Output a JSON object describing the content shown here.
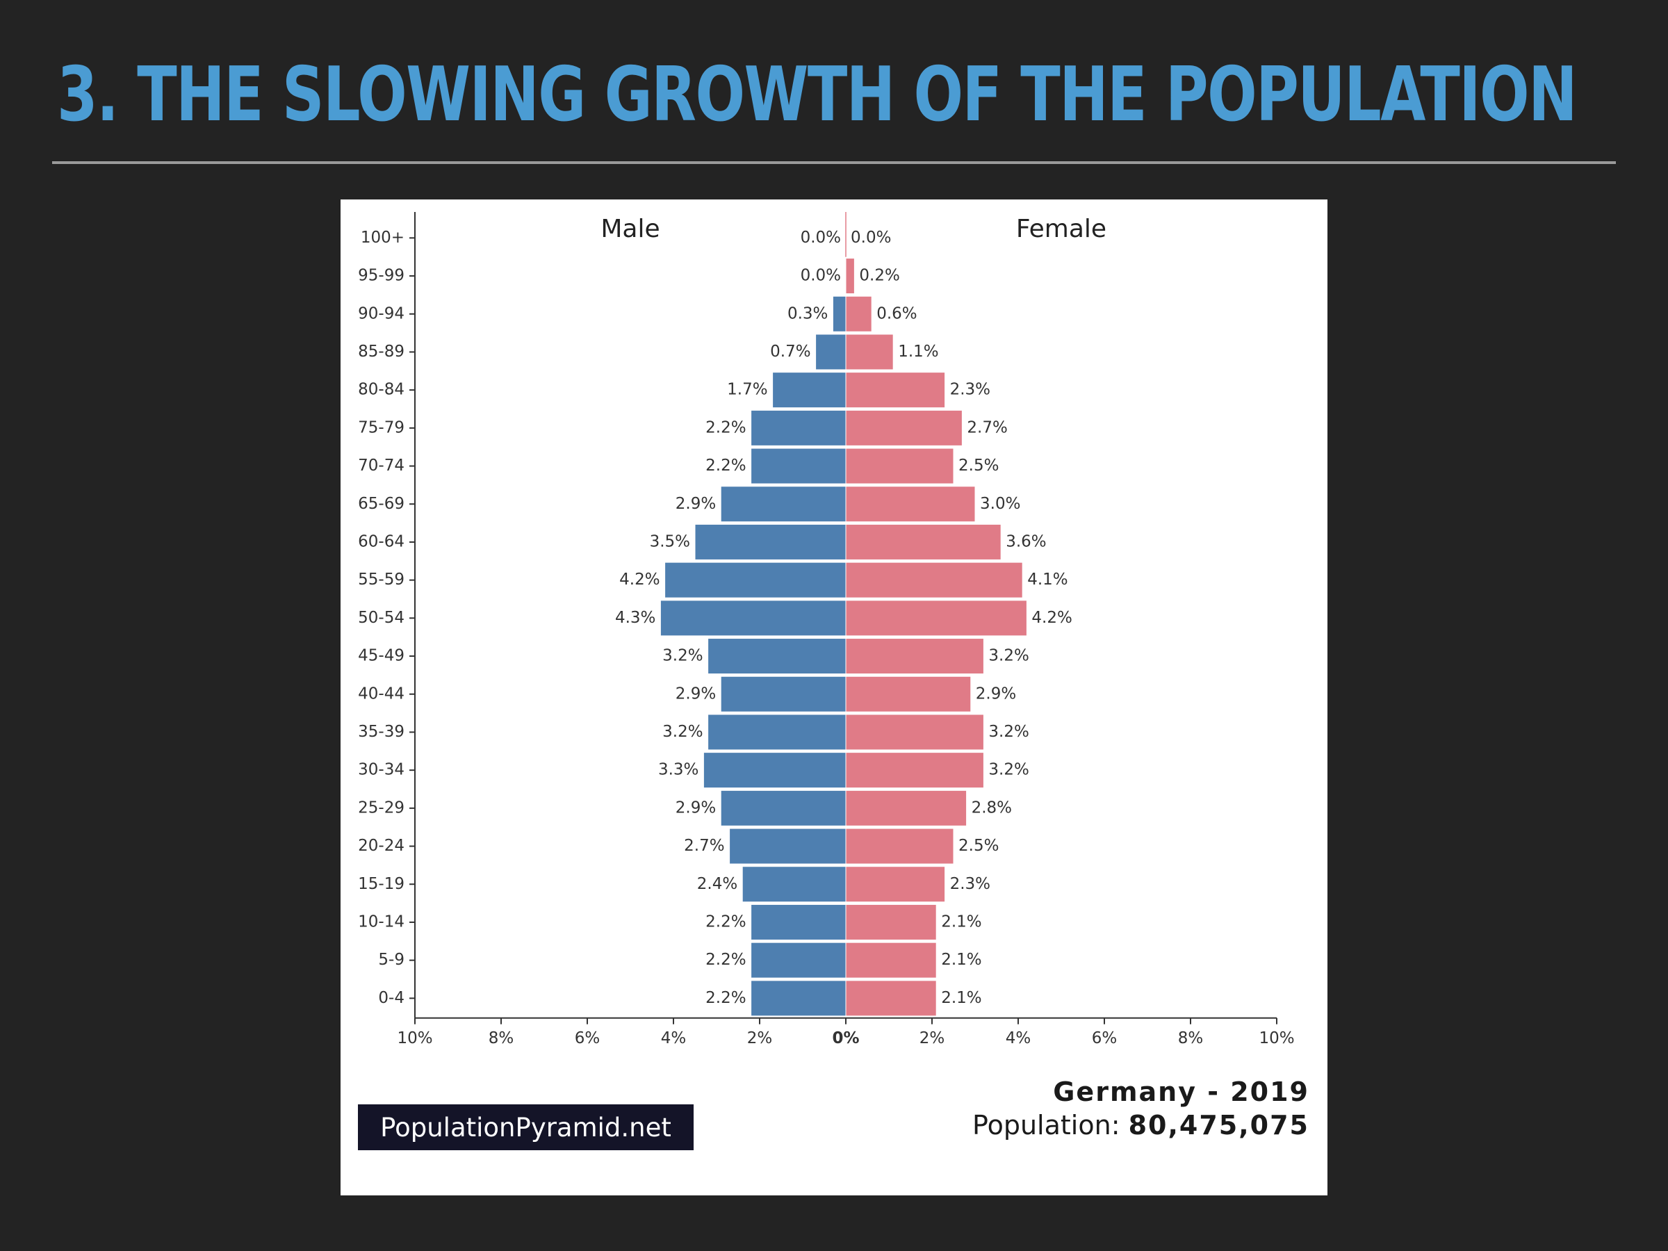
{
  "slide": {
    "title": "3. THE SLOWING GROWTH OF THE POPULATION"
  },
  "chart_meta": {
    "brand": "PopulationPyramid.net",
    "country_year": "Germany - 2019",
    "population_label": "Population:",
    "population_value": "80,475,075"
  },
  "chart_data": {
    "type": "bar",
    "orientation": "horizontal-pyramid",
    "categories": [
      "100+",
      "95-99",
      "90-94",
      "85-89",
      "80-84",
      "75-79",
      "70-74",
      "65-69",
      "60-64",
      "55-59",
      "50-54",
      "45-49",
      "40-44",
      "35-39",
      "30-34",
      "25-29",
      "20-24",
      "15-19",
      "10-14",
      "5-9",
      "0-4"
    ],
    "series": [
      {
        "name": "Male",
        "color": "#4e7fb0",
        "values": [
          0.0,
          0.0,
          0.3,
          0.7,
          1.7,
          2.2,
          2.2,
          2.9,
          3.5,
          4.2,
          4.3,
          3.2,
          2.9,
          3.2,
          3.3,
          2.9,
          2.7,
          2.4,
          2.2,
          2.2,
          2.2
        ],
        "labels": [
          "0.0%",
          "0.0%",
          "0.3%",
          "0.7%",
          "1.7%",
          "2.2%",
          "2.2%",
          "2.9%",
          "3.5%",
          "4.2%",
          "4.3%",
          "3.2%",
          "2.9%",
          "3.2%",
          "3.3%",
          "2.9%",
          "2.7%",
          "2.4%",
          "2.2%",
          "2.2%",
          "2.2%"
        ]
      },
      {
        "name": "Female",
        "color": "#e07b87",
        "values": [
          0.0,
          0.2,
          0.6,
          1.1,
          2.3,
          2.7,
          2.5,
          3.0,
          3.6,
          4.1,
          4.2,
          3.2,
          2.9,
          3.2,
          3.2,
          2.8,
          2.5,
          2.3,
          2.1,
          2.1,
          2.1
        ],
        "labels": [
          "0.0%",
          "0.2%",
          "0.6%",
          "1.1%",
          "2.3%",
          "2.7%",
          "2.5%",
          "3.0%",
          "3.6%",
          "4.1%",
          "4.2%",
          "3.2%",
          "2.9%",
          "3.2%",
          "3.2%",
          "2.8%",
          "2.5%",
          "2.3%",
          "2.1%",
          "2.1%",
          "2.1%"
        ]
      }
    ],
    "xlim": [
      -10,
      10
    ],
    "x_ticks": [
      "10%",
      "8%",
      "6%",
      "4%",
      "2%",
      "0%",
      "2%",
      "4%",
      "6%",
      "8%",
      "10%"
    ],
    "x_tick_values": [
      -10,
      -8,
      -6,
      -4,
      -2,
      0,
      2,
      4,
      6,
      8,
      10
    ],
    "grid": false
  }
}
